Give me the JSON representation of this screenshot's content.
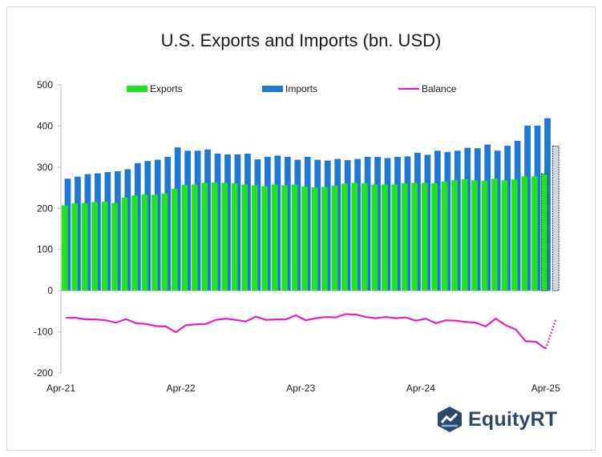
{
  "chart_data": {
    "type": "bar",
    "title": "U.S. Exports and Imports (bn. USD)",
    "ylim": [
      -200,
      500
    ],
    "yticks": [
      "500",
      "400",
      "300",
      "200",
      "100",
      "0",
      "-100",
      "-200"
    ],
    "ytick_values": [
      500,
      400,
      300,
      200,
      100,
      0,
      -100,
      -200
    ],
    "xtick_labels": [
      "Apr-21",
      "Apr-22",
      "Apr-23",
      "Apr-24",
      "Apr-25"
    ],
    "xtick_index": [
      0,
      12,
      24,
      36,
      48
    ],
    "categories_count": 49,
    "legend": [
      "Exports",
      "Imports",
      "Balance"
    ],
    "legend_position": "top",
    "colors": {
      "exports": "#21e321",
      "imports": "#1f78d1",
      "balance": "#e020c8",
      "forecast_imports": "#d0d8e0"
    },
    "series": [
      {
        "name": "Exports",
        "values": [
          207,
          212,
          213,
          215,
          216,
          213,
          226,
          231,
          234,
          233,
          236,
          247,
          257,
          258,
          262,
          263,
          262,
          261,
          258,
          256,
          254,
          258,
          256,
          258,
          253,
          251,
          252,
          255,
          260,
          262,
          261,
          258,
          258,
          258,
          261,
          262,
          262,
          261,
          265,
          268,
          271,
          268,
          267,
          272,
          268,
          270,
          278,
          278,
          284
        ]
      },
      {
        "name": "Imports",
        "values": [
          272,
          277,
          283,
          285,
          288,
          290,
          295,
          310,
          315,
          318,
          325,
          348,
          340,
          340,
          343,
          333,
          331,
          331,
          333,
          319,
          325,
          328,
          325,
          318,
          325,
          318,
          316,
          320,
          317,
          320,
          325,
          325,
          322,
          325,
          326,
          335,
          330,
          340,
          337,
          340,
          347,
          346,
          355,
          340,
          352,
          364,
          401,
          401,
          419,
          351
        ]
      },
      {
        "name": "Balance",
        "values": [
          -66,
          -66,
          -70,
          -70,
          -72,
          -78,
          -69,
          -79,
          -81,
          -86,
          -87,
          -101,
          -84,
          -82,
          -81,
          -71,
          -68,
          -71,
          -75,
          -63,
          -71,
          -70,
          -70,
          -60,
          -72,
          -67,
          -64,
          -65,
          -57,
          -58,
          -64,
          -67,
          -64,
          -67,
          -65,
          -73,
          -68,
          -79,
          -72,
          -73,
          -76,
          -78,
          -87,
          -68,
          -84,
          -94,
          -123,
          -124,
          -141,
          -70
        ]
      }
    ],
    "forecast_index": 49
  },
  "brand": {
    "name": "EquityRT"
  }
}
